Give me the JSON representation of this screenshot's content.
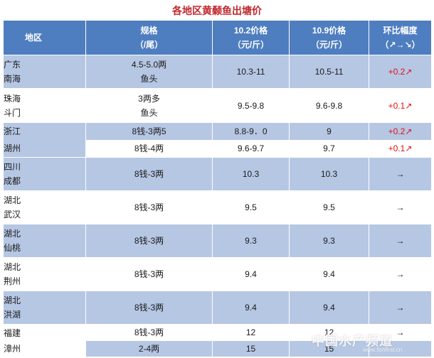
{
  "title": "各地区黄颡鱼出塘价",
  "header": {
    "region": "地区",
    "spec_line1": "规格",
    "spec_line2": "（/尾）",
    "p1_line1": "10.2价格",
    "p1_line2": "（元/斤）",
    "p2_line1": "10.9价格",
    "p2_line2": "（元/斤）",
    "chg_line1": "环比幅度",
    "chg_line2": "（↗→↘）"
  },
  "rows": [
    {
      "region_a": "广东",
      "region_b": "南海",
      "spec_a": "4.5-5.0两",
      "spec_b": "鱼头",
      "p1": "10.3-11",
      "p2": "10.5-11",
      "chg": "+0.2↗"
    },
    {
      "region_a": "珠海",
      "region_b": "斗门",
      "spec_a": "3两多",
      "spec_b": "鱼头",
      "p1": "9.5-9.8",
      "p2": "9.6-9.8",
      "chg": "+0.1↗"
    },
    {
      "region_a": "浙江",
      "region_b": "湖州",
      "spec_1": "8钱-3两5",
      "p1_1": "8.8-9．0",
      "p2_1": "9",
      "chg_1": "+0.2↗",
      "spec_2": "8钱-4两",
      "p1_2": "9.6-9.7",
      "p2_2": "9.7",
      "chg_2": "+0.1↗"
    },
    {
      "region_a": "四川",
      "region_b": "成都",
      "spec": "8钱-3两",
      "p1": "10.3",
      "p2": "10.3",
      "chg": "→"
    },
    {
      "region_a": "湖北",
      "region_b": "武汉",
      "spec": "8钱-3两",
      "p1": "9.5",
      "p2": "9.5",
      "chg": "→"
    },
    {
      "region_a": "湖北",
      "region_b": "仙桃",
      "spec": "8钱-3两",
      "p1": "9.3",
      "p2": "9.3",
      "chg": "→"
    },
    {
      "region_a": "湖北",
      "region_b": "荆州",
      "spec": "8钱-3两",
      "p1": "9.4",
      "p2": "9.4",
      "chg": "→"
    },
    {
      "region_a": "湖北",
      "region_b": "洪湖",
      "spec": "8钱-3两",
      "p1": "9.4",
      "p2": "9.4",
      "chg": "→"
    },
    {
      "region_a": "福建",
      "region_b": "漳州",
      "spec_1": "8钱-3两",
      "p1_1": "12",
      "p2_1": "12",
      "chg_1": "→",
      "spec_2": "2-4两",
      "p1_2": "15",
      "p2_2": "15",
      "chg_2": ""
    }
  ],
  "watermark": {
    "main": "中国水产频道",
    "sub": "www.fishfirst.cn"
  }
}
